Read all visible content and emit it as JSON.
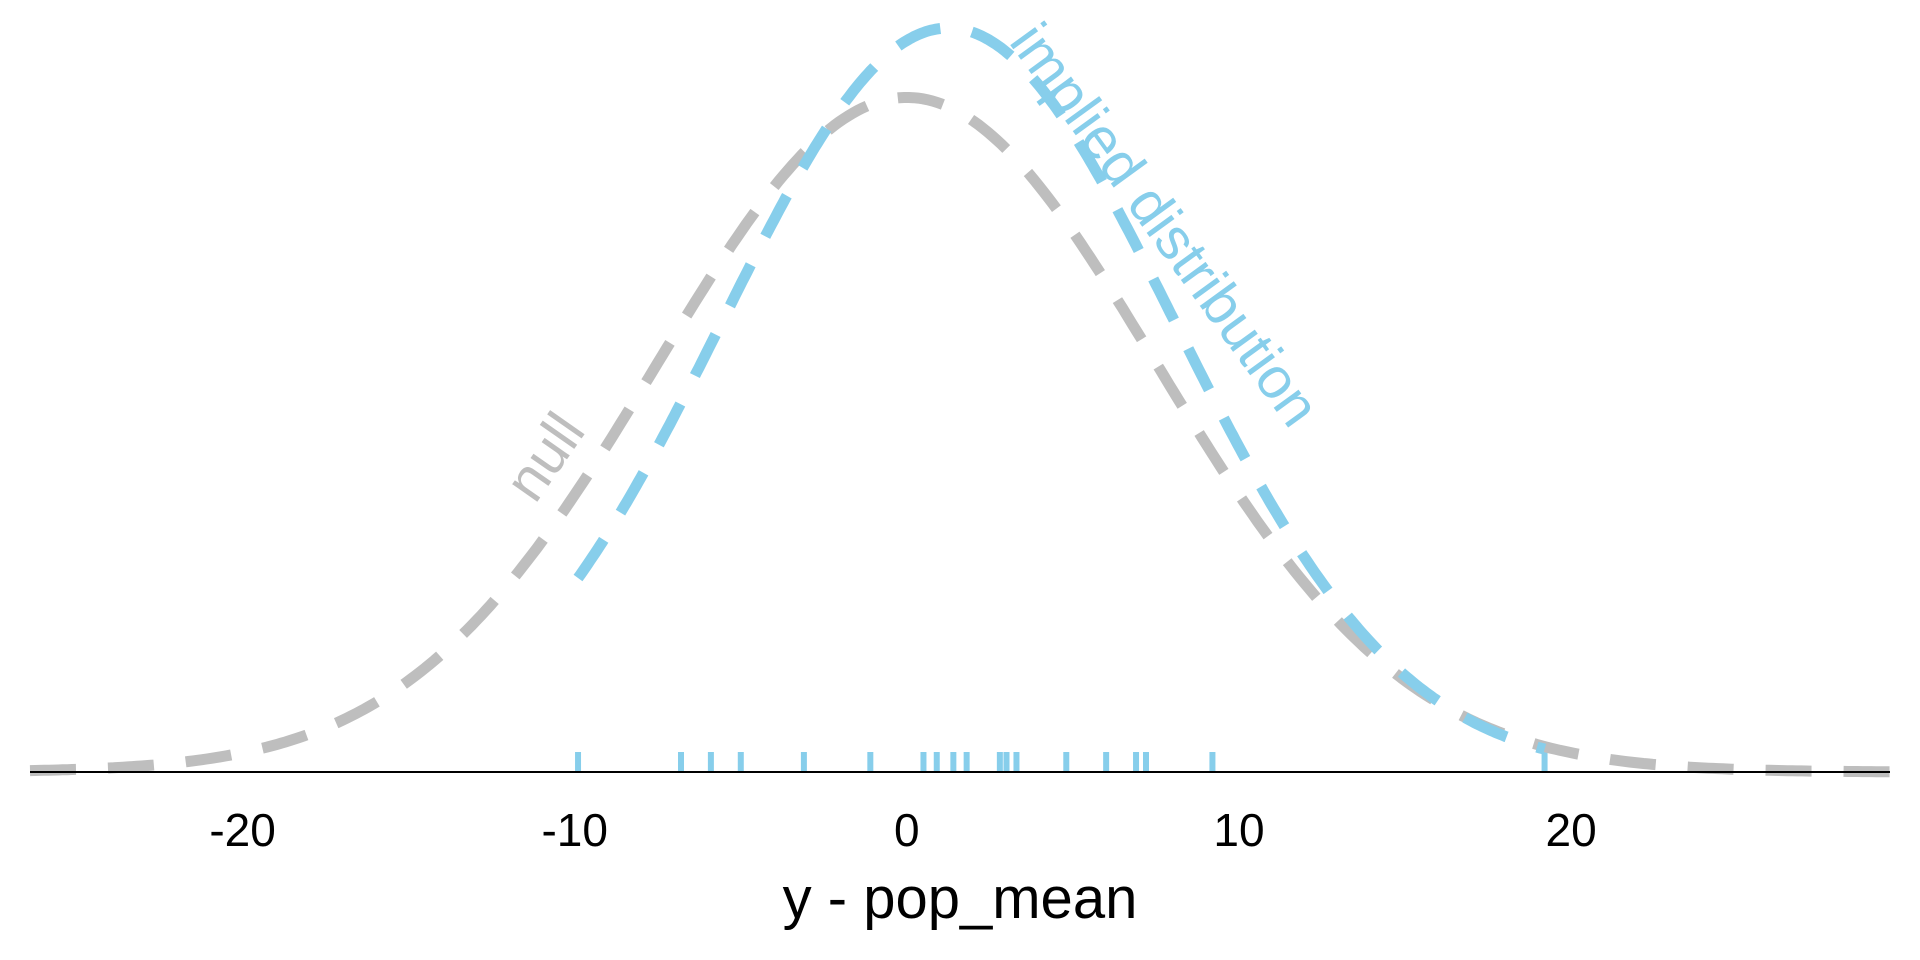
{
  "chart_data": {
    "type": "line",
    "title": "",
    "xlabel": "y - pop_mean",
    "ylabel": "",
    "xlim": [
      -26.4,
      29.6
    ],
    "xticks": [
      -20,
      -10,
      0,
      10,
      20
    ],
    "xtick_labels": [
      "-20",
      "-10",
      "0",
      "10",
      "20"
    ],
    "grid": false,
    "legend": "none",
    "colors": {
      "null": "#bebebe",
      "implied": "#87ceeb",
      "axis": "#000000"
    },
    "series": [
      {
        "key": "null",
        "name": "null",
        "distribution": "normal",
        "mean": 0,
        "sd": 7.5,
        "x_range": [
          -26.4,
          29.6
        ],
        "color": "#bebebe",
        "line_style": "dashed"
      },
      {
        "key": "implied",
        "name": "implied distribution",
        "distribution": "normal",
        "mean": 1.25,
        "sd": 6.8,
        "x_range": [
          -9.9,
          19.2
        ],
        "color": "#87ceeb",
        "line_style": "dashed"
      }
    ],
    "rug": {
      "color": "#87ceeb",
      "values": [
        -9.9,
        -6.8,
        -5.9,
        -5.0,
        -3.1,
        -1.1,
        0.5,
        0.9,
        1.4,
        1.8,
        2.8,
        3.0,
        3.3,
        4.8,
        6.0,
        6.9,
        7.2,
        9.2,
        19.2
      ]
    }
  }
}
